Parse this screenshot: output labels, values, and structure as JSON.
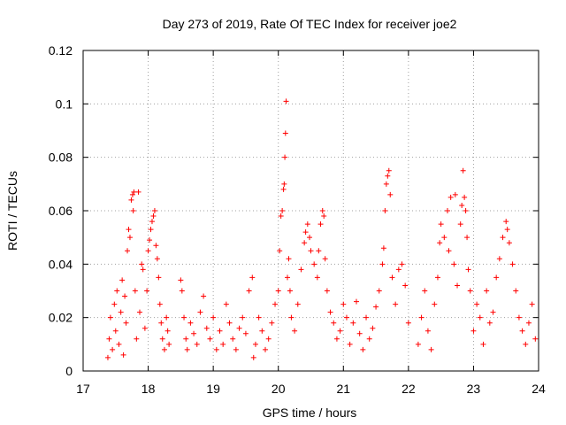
{
  "chart_data": {
    "type": "scatter",
    "title": "Day 273 of 2019, Rate Of TEC Index for receiver joe2",
    "xlabel": "GPS time / hours",
    "ylabel": "ROTI / TECUs",
    "xlim": [
      17,
      24
    ],
    "ylim": [
      0,
      0.12
    ],
    "x_ticks": [
      "17",
      "18",
      "19",
      "20",
      "21",
      "22",
      "23",
      "24"
    ],
    "y_ticks": [
      "0",
      "0.02",
      "0.04",
      "0.06",
      "0.08",
      "0.1",
      "0.12"
    ],
    "grid": true,
    "marker": "+",
    "colors": {
      "points": "#ff0000",
      "grid": "#a0a0a0",
      "axes": "#000000"
    },
    "series": [
      {
        "name": "ROTI",
        "points": [
          [
            17.38,
            0.005
          ],
          [
            17.4,
            0.012
          ],
          [
            17.42,
            0.02
          ],
          [
            17.45,
            0.008
          ],
          [
            17.48,
            0.025
          ],
          [
            17.5,
            0.015
          ],
          [
            17.52,
            0.03
          ],
          [
            17.55,
            0.01
          ],
          [
            17.58,
            0.022
          ],
          [
            17.6,
            0.034
          ],
          [
            17.62,
            0.006
          ],
          [
            17.64,
            0.028
          ],
          [
            17.66,
            0.018
          ],
          [
            17.68,
            0.045
          ],
          [
            17.7,
            0.053
          ],
          [
            17.72,
            0.05
          ],
          [
            17.74,
            0.064
          ],
          [
            17.76,
            0.066
          ],
          [
            17.77,
            0.06
          ],
          [
            17.78,
            0.067
          ],
          [
            17.8,
            0.03
          ],
          [
            17.82,
            0.012
          ],
          [
            17.85,
            0.067
          ],
          [
            17.87,
            0.022
          ],
          [
            17.9,
            0.04
          ],
          [
            17.92,
            0.038
          ],
          [
            17.95,
            0.016
          ],
          [
            17.98,
            0.03
          ],
          [
            18.0,
            0.045
          ],
          [
            18.02,
            0.049
          ],
          [
            18.04,
            0.053
          ],
          [
            18.06,
            0.056
          ],
          [
            18.08,
            0.058
          ],
          [
            18.1,
            0.06
          ],
          [
            18.12,
            0.047
          ],
          [
            18.14,
            0.042
          ],
          [
            18.16,
            0.035
          ],
          [
            18.18,
            0.025
          ],
          [
            18.2,
            0.018
          ],
          [
            18.22,
            0.012
          ],
          [
            18.25,
            0.008
          ],
          [
            18.28,
            0.02
          ],
          [
            18.3,
            0.015
          ],
          [
            18.32,
            0.01
          ],
          [
            18.5,
            0.034
          ],
          [
            18.52,
            0.03
          ],
          [
            18.55,
            0.02
          ],
          [
            18.58,
            0.012
          ],
          [
            18.6,
            0.008
          ],
          [
            18.65,
            0.018
          ],
          [
            18.7,
            0.014
          ],
          [
            18.75,
            0.01
          ],
          [
            18.8,
            0.022
          ],
          [
            18.85,
            0.028
          ],
          [
            18.9,
            0.016
          ],
          [
            18.95,
            0.012
          ],
          [
            19.0,
            0.02
          ],
          [
            19.05,
            0.008
          ],
          [
            19.1,
            0.015
          ],
          [
            19.15,
            0.01
          ],
          [
            19.2,
            0.025
          ],
          [
            19.25,
            0.018
          ],
          [
            19.3,
            0.012
          ],
          [
            19.35,
            0.008
          ],
          [
            19.4,
            0.016
          ],
          [
            19.45,
            0.02
          ],
          [
            19.5,
            0.014
          ],
          [
            19.55,
            0.03
          ],
          [
            19.6,
            0.035
          ],
          [
            19.62,
            0.005
          ],
          [
            19.65,
            0.01
          ],
          [
            19.7,
            0.02
          ],
          [
            19.75,
            0.015
          ],
          [
            19.8,
            0.008
          ],
          [
            19.85,
            0.012
          ],
          [
            19.9,
            0.018
          ],
          [
            19.95,
            0.025
          ],
          [
            20.0,
            0.03
          ],
          [
            20.02,
            0.045
          ],
          [
            20.04,
            0.058
          ],
          [
            20.06,
            0.06
          ],
          [
            20.08,
            0.068
          ],
          [
            20.09,
            0.07
          ],
          [
            20.1,
            0.08
          ],
          [
            20.11,
            0.089
          ],
          [
            20.12,
            0.101
          ],
          [
            20.14,
            0.035
          ],
          [
            20.16,
            0.042
          ],
          [
            20.18,
            0.03
          ],
          [
            20.2,
            0.02
          ],
          [
            20.25,
            0.015
          ],
          [
            20.3,
            0.025
          ],
          [
            20.35,
            0.038
          ],
          [
            20.4,
            0.048
          ],
          [
            20.42,
            0.052
          ],
          [
            20.45,
            0.055
          ],
          [
            20.48,
            0.05
          ],
          [
            20.5,
            0.045
          ],
          [
            20.55,
            0.04
          ],
          [
            20.6,
            0.035
          ],
          [
            20.62,
            0.045
          ],
          [
            20.65,
            0.055
          ],
          [
            20.68,
            0.06
          ],
          [
            20.7,
            0.058
          ],
          [
            20.72,
            0.042
          ],
          [
            20.75,
            0.03
          ],
          [
            20.8,
            0.022
          ],
          [
            20.85,
            0.018
          ],
          [
            20.9,
            0.012
          ],
          [
            20.95,
            0.015
          ],
          [
            21.0,
            0.025
          ],
          [
            21.05,
            0.02
          ],
          [
            21.1,
            0.01
          ],
          [
            21.15,
            0.018
          ],
          [
            21.2,
            0.026
          ],
          [
            21.25,
            0.014
          ],
          [
            21.3,
            0.008
          ],
          [
            21.35,
            0.02
          ],
          [
            21.4,
            0.012
          ],
          [
            21.45,
            0.016
          ],
          [
            21.5,
            0.024
          ],
          [
            21.55,
            0.03
          ],
          [
            21.6,
            0.04
          ],
          [
            21.62,
            0.046
          ],
          [
            21.64,
            0.06
          ],
          [
            21.66,
            0.07
          ],
          [
            21.68,
            0.073
          ],
          [
            21.7,
            0.075
          ],
          [
            21.72,
            0.066
          ],
          [
            21.75,
            0.035
          ],
          [
            21.8,
            0.025
          ],
          [
            21.85,
            0.038
          ],
          [
            21.9,
            0.04
          ],
          [
            21.95,
            0.032
          ],
          [
            22.0,
            0.018
          ],
          [
            22.15,
            0.01
          ],
          [
            22.2,
            0.02
          ],
          [
            22.25,
            0.03
          ],
          [
            22.3,
            0.015
          ],
          [
            22.35,
            0.008
          ],
          [
            22.4,
            0.025
          ],
          [
            22.45,
            0.035
          ],
          [
            22.48,
            0.048
          ],
          [
            22.5,
            0.055
          ],
          [
            22.55,
            0.05
          ],
          [
            22.6,
            0.06
          ],
          [
            22.62,
            0.045
          ],
          [
            22.65,
            0.065
          ],
          [
            22.7,
            0.04
          ],
          [
            22.72,
            0.066
          ],
          [
            22.75,
            0.032
          ],
          [
            22.8,
            0.055
          ],
          [
            22.82,
            0.062
          ],
          [
            22.84,
            0.075
          ],
          [
            22.86,
            0.065
          ],
          [
            22.88,
            0.06
          ],
          [
            22.9,
            0.05
          ],
          [
            22.92,
            0.038
          ],
          [
            22.95,
            0.03
          ],
          [
            23.0,
            0.015
          ],
          [
            23.05,
            0.025
          ],
          [
            23.1,
            0.02
          ],
          [
            23.15,
            0.01
          ],
          [
            23.2,
            0.03
          ],
          [
            23.25,
            0.018
          ],
          [
            23.3,
            0.022
          ],
          [
            23.35,
            0.035
          ],
          [
            23.4,
            0.042
          ],
          [
            23.45,
            0.05
          ],
          [
            23.5,
            0.056
          ],
          [
            23.52,
            0.053
          ],
          [
            23.55,
            0.048
          ],
          [
            23.6,
            0.04
          ],
          [
            23.65,
            0.03
          ],
          [
            23.7,
            0.02
          ],
          [
            23.75,
            0.015
          ],
          [
            23.8,
            0.01
          ],
          [
            23.85,
            0.018
          ],
          [
            23.9,
            0.025
          ],
          [
            23.95,
            0.012
          ]
        ]
      }
    ]
  }
}
